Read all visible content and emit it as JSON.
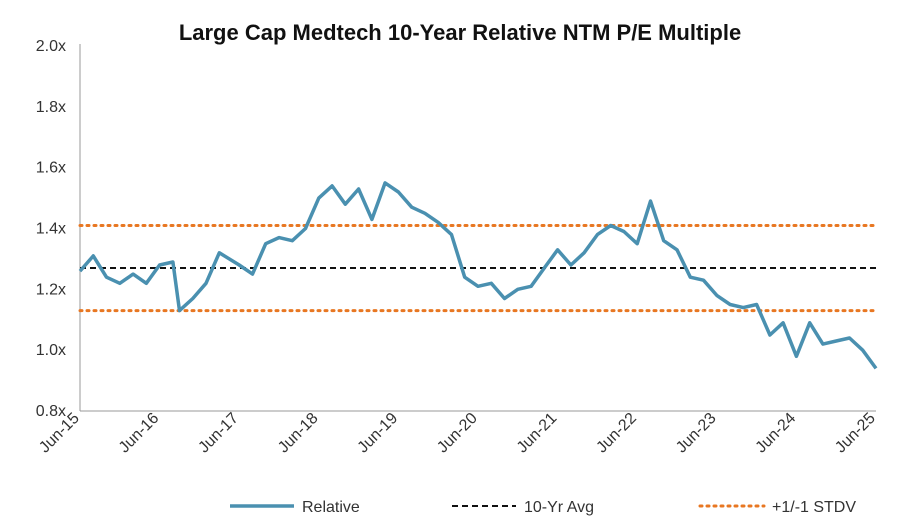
{
  "chart_data": {
    "type": "line",
    "title": "Large Cap Medtech 10-Year Relative NTM P/E Multiple",
    "xlabel": "",
    "ylabel": "",
    "ylim": [
      0.8,
      2.0
    ],
    "y_ticks": [
      "0.8x",
      "1.0x",
      "1.2x",
      "1.4x",
      "1.6x",
      "1.8x",
      "2.0x"
    ],
    "x_ticks": [
      "Jun-15",
      "Jun-16",
      "Jun-17",
      "Jun-18",
      "Jun-19",
      "Jun-20",
      "Jun-21",
      "Jun-22",
      "Jun-23",
      "Jun-24",
      "Jun-25"
    ],
    "grid": false,
    "legend_position": "bottom",
    "series": [
      {
        "name": "Relative",
        "style": "solid",
        "color": "#4A90B0",
        "x": [
          "2015-06",
          "2015-08",
          "2015-10",
          "2015-12",
          "2016-02",
          "2016-04",
          "2016-06",
          "2016-08",
          "2016-09",
          "2016-11",
          "2017-01",
          "2017-03",
          "2017-06",
          "2017-08",
          "2017-10",
          "2017-12",
          "2018-02",
          "2018-04",
          "2018-06",
          "2018-08",
          "2018-10",
          "2018-12",
          "2019-02",
          "2019-04",
          "2019-06",
          "2019-08",
          "2019-10",
          "2019-12",
          "2020-02",
          "2020-04",
          "2020-06",
          "2020-08",
          "2020-10",
          "2020-12",
          "2021-02",
          "2021-04",
          "2021-06",
          "2021-08",
          "2021-10",
          "2021-12",
          "2022-02",
          "2022-04",
          "2022-06",
          "2022-08",
          "2022-10",
          "2022-12",
          "2023-02",
          "2023-04",
          "2023-06",
          "2023-08",
          "2023-10",
          "2023-12",
          "2024-02",
          "2024-04",
          "2024-06",
          "2024-08",
          "2024-10",
          "2024-12",
          "2025-02",
          "2025-04",
          "2025-06"
        ],
        "values": [
          1.26,
          1.31,
          1.24,
          1.22,
          1.25,
          1.22,
          1.28,
          1.29,
          1.13,
          1.17,
          1.22,
          1.32,
          1.28,
          1.25,
          1.35,
          1.37,
          1.36,
          1.4,
          1.5,
          1.54,
          1.48,
          1.53,
          1.43,
          1.55,
          1.52,
          1.47,
          1.45,
          1.42,
          1.38,
          1.24,
          1.21,
          1.22,
          1.17,
          1.2,
          1.21,
          1.27,
          1.33,
          1.28,
          1.32,
          1.38,
          1.41,
          1.39,
          1.35,
          1.49,
          1.36,
          1.33,
          1.24,
          1.23,
          1.18,
          1.15,
          1.14,
          1.15,
          1.05,
          1.09,
          0.98,
          1.09,
          1.02,
          1.03,
          1.04,
          1.0,
          0.94
        ]
      },
      {
        "name": "10-Yr Avg",
        "style": "dashed",
        "color": "#111111",
        "x": [
          "2015-06",
          "2025-06"
        ],
        "values": [
          1.27,
          1.27
        ]
      },
      {
        "name": "+1/-1 STDV",
        "style": "dotted",
        "color": "#E87722",
        "x": [
          "2015-06",
          "2025-06"
        ],
        "values": [
          1.41,
          1.41
        ],
        "lower_values": [
          1.13,
          1.13
        ]
      }
    ]
  }
}
